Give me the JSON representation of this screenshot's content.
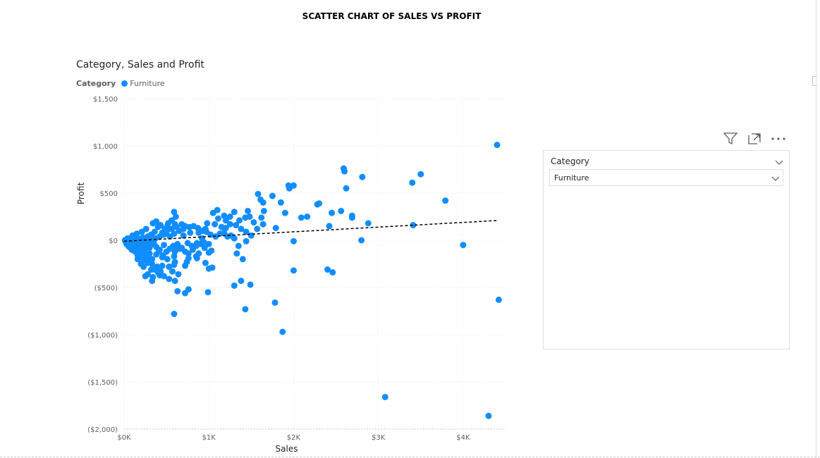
{
  "page": {
    "title": "SCATTER CHART OF SALES VS PROFIT"
  },
  "visual": {
    "title": "Category, Sales and Profit",
    "legend_title": "Category",
    "legend_items": [
      {
        "label": "Furniture",
        "color": "#118dff"
      }
    ]
  },
  "slicer": {
    "title": "Category",
    "selected_value": "Furniture"
  },
  "header_icons": [
    "filter-icon",
    "focus-mode-icon",
    "more-options-icon"
  ],
  "chart_data": {
    "type": "scatter",
    "title": "Category, Sales and Profit",
    "xlabel": "Sales",
    "ylabel": "Profit",
    "xlim": [
      0,
      4500
    ],
    "ylim": [
      -2000,
      1500
    ],
    "x_ticks": [
      0,
      1000,
      2000,
      3000,
      4000
    ],
    "x_tick_labels": [
      "$0K",
      "$1K",
      "$2K",
      "$3K",
      "$4K"
    ],
    "y_ticks": [
      1500,
      1000,
      500,
      0,
      -500,
      -1000,
      -1500,
      -2000
    ],
    "y_tick_labels": [
      "$1,500",
      "$1,000",
      "$500",
      "$0",
      "($500)",
      "($1,000)",
      "($1,500)",
      "($2,000)"
    ],
    "grid": true,
    "point_color": "#118dff",
    "trend_line": {
      "x": [
        0,
        4420
      ],
      "y": [
        -10,
        210
      ],
      "color": "#000000",
      "style": "dashed"
    },
    "series": [
      {
        "name": "Furniture",
        "points": [
          [
            4400,
            1010
          ],
          [
            4420,
            -630
          ],
          [
            4300,
            -1860
          ],
          [
            3080,
            -1660
          ],
          [
            4000,
            -50
          ],
          [
            3790,
            420
          ],
          [
            3500,
            700
          ],
          [
            3400,
            610
          ],
          [
            3410,
            160
          ],
          [
            2880,
            180
          ],
          [
            2810,
            670
          ],
          [
            2800,
            0
          ],
          [
            2590,
            760
          ],
          [
            2600,
            730
          ],
          [
            2620,
            550
          ],
          [
            2690,
            260
          ],
          [
            2690,
            240
          ],
          [
            2560,
            310
          ],
          [
            2450,
            290
          ],
          [
            2400,
            -310
          ],
          [
            2460,
            -340
          ],
          [
            2420,
            150
          ],
          [
            2300,
            390
          ],
          [
            2280,
            380
          ],
          [
            2160,
            250
          ],
          [
            2090,
            240
          ],
          [
            2000,
            580
          ],
          [
            1940,
            580
          ],
          [
            1950,
            550
          ],
          [
            2000,
            -320
          ],
          [
            2000,
            -10
          ],
          [
            1870,
            -970
          ],
          [
            1780,
            -660
          ],
          [
            1850,
            400
          ],
          [
            1900,
            290
          ],
          [
            1750,
            470
          ],
          [
            1790,
            130
          ],
          [
            1580,
            490
          ],
          [
            1610,
            430
          ],
          [
            1640,
            400
          ],
          [
            1650,
            310
          ],
          [
            1620,
            240
          ],
          [
            1640,
            170
          ],
          [
            1570,
            120
          ],
          [
            1530,
            190
          ],
          [
            1500,
            50
          ],
          [
            1440,
            -10
          ],
          [
            1460,
            310
          ],
          [
            1430,
            240
          ],
          [
            1430,
            -730
          ],
          [
            1490,
            -470
          ],
          [
            1380,
            -430
          ],
          [
            1400,
            -200
          ],
          [
            1300,
            -480
          ],
          [
            1330,
            -140
          ],
          [
            1350,
            -60
          ],
          [
            1260,
            50
          ],
          [
            1200,
            130
          ],
          [
            1180,
            260
          ],
          [
            1100,
            320
          ],
          [
            1110,
            230
          ],
          [
            1050,
            290
          ],
          [
            1070,
            170
          ],
          [
            980,
            180
          ],
          [
            960,
            120
          ],
          [
            920,
            20
          ],
          [
            1000,
            -40
          ],
          [
            1030,
            -110
          ],
          [
            1040,
            -290
          ],
          [
            1000,
            -300
          ],
          [
            960,
            -240
          ],
          [
            880,
            -140
          ],
          [
            850,
            -170
          ],
          [
            860,
            -190
          ],
          [
            740,
            -230
          ],
          [
            720,
            -270
          ],
          [
            760,
            -190
          ],
          [
            610,
            -100
          ],
          [
            660,
            -90
          ],
          [
            590,
            -170
          ],
          [
            590,
            -260
          ],
          [
            570,
            -330
          ],
          [
            640,
            -360
          ],
          [
            530,
            -280
          ],
          [
            600,
            -230
          ],
          [
            510,
            -200
          ],
          [
            450,
            -180
          ],
          [
            430,
            -330
          ],
          [
            400,
            -340
          ],
          [
            360,
            -310
          ],
          [
            340,
            -390
          ],
          [
            320,
            -310
          ],
          [
            330,
            -250
          ],
          [
            300,
            -190
          ],
          [
            270,
            -160
          ],
          [
            250,
            -380
          ],
          [
            280,
            -360
          ],
          [
            330,
            -430
          ],
          [
            420,
            -370
          ],
          [
            470,
            -380
          ],
          [
            390,
            -280
          ],
          [
            590,
            -780
          ],
          [
            630,
            -540
          ],
          [
            530,
            -410
          ],
          [
            450,
            -270
          ],
          [
            600,
            -430
          ],
          [
            720,
            -560
          ],
          [
            760,
            -520
          ],
          [
            990,
            -550
          ],
          [
            600,
            -120
          ],
          [
            860,
            -30
          ],
          [
            940,
            -20
          ],
          [
            880,
            80
          ],
          [
            780,
            80
          ],
          [
            700,
            120
          ],
          [
            600,
            170
          ],
          [
            560,
            210
          ],
          [
            590,
            300
          ],
          [
            610,
            250
          ],
          [
            510,
            150
          ],
          [
            450,
            80
          ],
          [
            400,
            140
          ],
          [
            360,
            90
          ],
          [
            320,
            60
          ],
          [
            280,
            40
          ],
          [
            260,
            120
          ],
          [
            210,
            90
          ],
          [
            220,
            30
          ],
          [
            160,
            20
          ],
          [
            150,
            70
          ],
          [
            120,
            40
          ],
          [
            100,
            50
          ],
          [
            80,
            10
          ],
          [
            60,
            -10
          ],
          [
            40,
            20
          ],
          [
            20,
            -20
          ],
          [
            50,
            -60
          ],
          [
            70,
            -40
          ],
          [
            100,
            -80
          ],
          [
            130,
            -120
          ],
          [
            160,
            -160
          ],
          [
            190,
            -180
          ],
          [
            210,
            -150
          ],
          [
            240,
            -210
          ],
          [
            180,
            -100
          ],
          [
            140,
            -60
          ],
          [
            200,
            -60
          ],
          [
            260,
            -60
          ],
          [
            300,
            -80
          ],
          [
            350,
            -30
          ],
          [
            370,
            20
          ],
          [
            420,
            40
          ],
          [
            470,
            60
          ],
          [
            500,
            90
          ],
          [
            540,
            40
          ],
          [
            590,
            70
          ],
          [
            650,
            100
          ],
          [
            700,
            50
          ],
          [
            750,
            -30
          ],
          [
            800,
            -60
          ],
          [
            300,
            10
          ],
          [
            250,
            -20
          ],
          [
            180,
            -20
          ],
          [
            120,
            -30
          ],
          [
            90,
            -100
          ],
          [
            60,
            -70
          ],
          [
            30,
            -40
          ],
          [
            10,
            0
          ],
          [
            70,
            20
          ],
          [
            110,
            10
          ],
          [
            150,
            0
          ],
          [
            200,
            0
          ],
          [
            240,
            0
          ],
          [
            280,
            -10
          ],
          [
            330,
            -40
          ],
          [
            380,
            -70
          ],
          [
            410,
            -120
          ],
          [
            460,
            -160
          ],
          [
            500,
            -120
          ],
          [
            540,
            -90
          ],
          [
            580,
            -60
          ],
          [
            630,
            -40
          ],
          [
            680,
            -80
          ],
          [
            720,
            -120
          ],
          [
            760,
            -140
          ],
          [
            810,
            -100
          ],
          [
            850,
            -60
          ],
          [
            900,
            -40
          ],
          [
            950,
            -80
          ],
          [
            1000,
            -130
          ],
          [
            300,
            -140
          ],
          [
            240,
            -110
          ],
          [
            160,
            -200
          ],
          [
            200,
            -250
          ],
          [
            230,
            -280
          ],
          [
            280,
            -240
          ],
          [
            330,
            -200
          ],
          [
            380,
            -150
          ],
          [
            420,
            -100
          ],
          [
            470,
            -50
          ],
          [
            340,
            180
          ],
          [
            380,
            200
          ],
          [
            430,
            160
          ],
          [
            480,
            120
          ],
          [
            520,
            180
          ],
          [
            560,
            120
          ],
          [
            620,
            140
          ],
          [
            680,
            170
          ],
          [
            720,
            150
          ],
          [
            770,
            140
          ],
          [
            820,
            150
          ],
          [
            870,
            130
          ],
          [
            920,
            100
          ],
          [
            970,
            90
          ],
          [
            1020,
            60
          ],
          [
            1080,
            40
          ],
          [
            1130,
            70
          ],
          [
            1180,
            80
          ],
          [
            1220,
            40
          ],
          [
            1300,
            20
          ],
          [
            1150,
            140
          ],
          [
            1200,
            210
          ],
          [
            1250,
            170
          ],
          [
            1320,
            160
          ],
          [
            1380,
            120
          ],
          [
            1440,
            90
          ],
          [
            1300,
            300
          ],
          [
            1250,
            250
          ],
          [
            1360,
            210
          ],
          [
            1480,
            250
          ]
        ]
      }
    ]
  }
}
